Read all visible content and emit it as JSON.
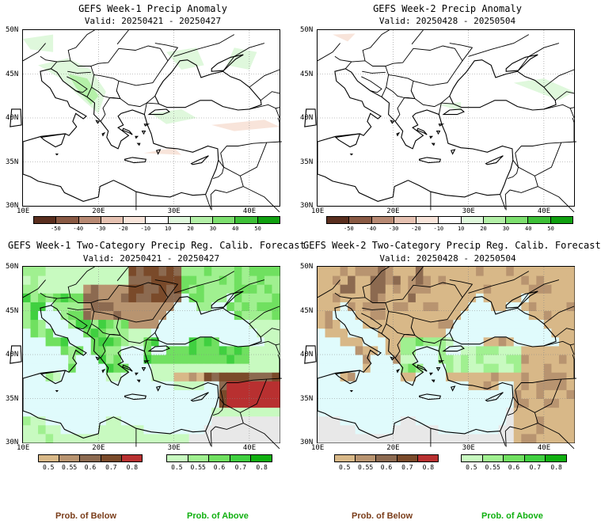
{
  "panels": [
    {
      "title": "GEFS Week-1 Precip Anomaly",
      "valid": "Valid: 20250421 - 20250427",
      "kind": "anomaly",
      "fill": "white"
    },
    {
      "title": "GEFS Week-2 Precip Anomaly",
      "valid": "Valid: 20250428 - 20250504",
      "kind": "anomaly",
      "fill": "white"
    },
    {
      "title": "GEFS Week-1 Two-Category Precip Reg. Calib. Forecast",
      "valid": "Valid: 20250421 - 20250427",
      "kind": "prob",
      "week": 1
    },
    {
      "title": "GEFS Week-2 Two-Category Precip Reg. Calib. Forecast",
      "valid": "Valid: 20250428 - 20250504",
      "kind": "prob",
      "week": 2
    }
  ],
  "axes": {
    "lat_labels": [
      "50N",
      "45N",
      "40N",
      "35N",
      "30N"
    ],
    "lon_labels": [
      "10E",
      "20E",
      "30E",
      "40E"
    ]
  },
  "anomaly_colorbar": {
    "labels": [
      "-50",
      "-40",
      "-30",
      "-20",
      "-10",
      "10",
      "20",
      "30",
      "40",
      "50"
    ],
    "colors": [
      "#5a2e1e",
      "#8a5a44",
      "#b88a74",
      "#e6c2b2",
      "#f8e4da",
      "#ffffff",
      "#dff8dc",
      "#b4f0a8",
      "#7ee070",
      "#3ec038",
      "#10a010"
    ]
  },
  "below_colorbar": {
    "labels": [
      "0.5",
      "0.55",
      "0.6",
      "0.7",
      "0.8"
    ],
    "colors": [
      "#d8b888",
      "#b89470",
      "#8c6a50",
      "#7a4a2a",
      "#b83030"
    ]
  },
  "above_colorbar": {
    "labels": [
      "0.5",
      "0.55",
      "0.6",
      "0.7",
      "0.8"
    ],
    "colors": [
      "#c8fac0",
      "#a0f090",
      "#70e060",
      "#40d040",
      "#10b010"
    ]
  },
  "footer": {
    "below": "Prob. of Below",
    "above": "Prob. of Above"
  },
  "colors": {
    "sea": "#e0fbfc",
    "dry_land": "#e8e8e8",
    "below_text": "#7a3d1a",
    "above_text": "#10b010"
  }
}
